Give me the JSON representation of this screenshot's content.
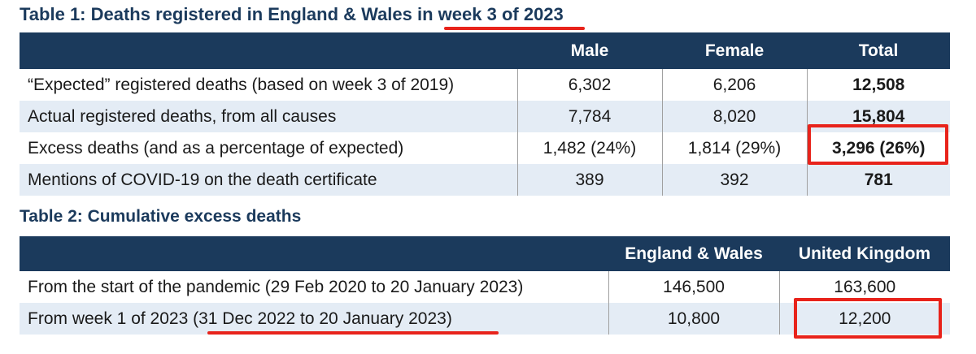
{
  "table1": {
    "title_prefix": "Table 1: Deaths registered in England & Wales in ",
    "title_highlight": "week 3 of 2023",
    "headers": [
      "",
      "Male",
      "Female",
      "Total"
    ],
    "rows": [
      {
        "label": "“Expected” registered deaths (based on week 3 of 2019)",
        "male": "6,302",
        "female": "6,206",
        "total": "12,508"
      },
      {
        "label": "Actual registered deaths, from all causes",
        "male": "7,784",
        "female": "8,020",
        "total": "15,804"
      },
      {
        "label": "Excess deaths (and as a percentage of expected)",
        "male": "1,482 (24%)",
        "female": "1,814 (29%)",
        "total": "3,296 (26%)"
      },
      {
        "label": "Mentions of COVID-19 on the death certificate",
        "male": "389",
        "female": "392",
        "total": "781"
      }
    ]
  },
  "table2": {
    "title": "Table 2: Cumulative excess deaths",
    "headers": [
      "",
      "England & Wales",
      "United Kingdom"
    ],
    "rows": [
      {
        "label_prefix": "From the start of the pandemic (29 Feb 2020 to 20 January 2023)",
        "label_highlight": "",
        "ew": "146,500",
        "uk": "163,600"
      },
      {
        "label_prefix": "From week 1 of 2023 ",
        "label_highlight": "(31 Dec 2022 to 20 January 2023)",
        "ew": "10,800",
        "uk": "12,200"
      }
    ]
  },
  "colors": {
    "header_bg": "#1b3a5c",
    "alt_row_bg": "#e4ecf5",
    "highlight_red": "#e8231b"
  }
}
